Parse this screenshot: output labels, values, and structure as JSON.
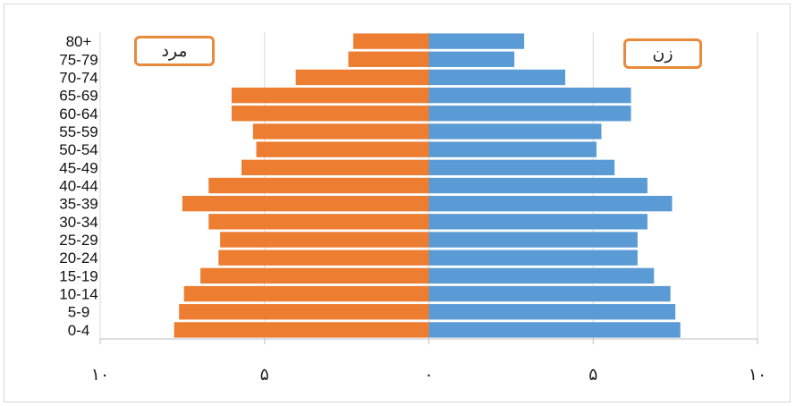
{
  "chart_data": {
    "type": "bar",
    "orientation": "horizontal",
    "layout": "population-pyramid",
    "categories": [
      "0-4",
      "5-9",
      "10-14",
      "15-19",
      "20-24",
      "25-29",
      "30-34",
      "35-39",
      "40-44",
      "45-49",
      "50-54",
      "55-59",
      "60-64",
      "65-69",
      "70-74",
      "75-79",
      "80+"
    ],
    "series": [
      {
        "name": "مرد",
        "side": "left",
        "color": "#ed7d31",
        "values": [
          7.75,
          7.6,
          7.45,
          6.95,
          6.4,
          6.35,
          6.7,
          7.5,
          6.7,
          5.7,
          5.25,
          5.35,
          6.0,
          6.0,
          4.05,
          2.45,
          2.3
        ]
      },
      {
        "name": "زن",
        "side": "right",
        "color": "#5b9bd5",
        "values": [
          7.65,
          7.5,
          7.35,
          6.85,
          6.35,
          6.35,
          6.65,
          7.4,
          6.65,
          5.65,
          5.1,
          5.25,
          6.15,
          6.15,
          4.15,
          2.6,
          2.9
        ]
      }
    ],
    "xlim": [
      -10,
      10
    ],
    "xticks": [
      {
        "value": -10,
        "label": "۱۰"
      },
      {
        "value": -5,
        "label": "۵"
      },
      {
        "value": 0,
        "label": "۰"
      },
      {
        "value": 5,
        "label": "۵"
      },
      {
        "value": 10,
        "label": "۱۰"
      }
    ],
    "legend": [
      {
        "label": "مرد",
        "placement": "top-left",
        "color": "#e98a3a"
      },
      {
        "label": "زن",
        "placement": "top-right",
        "color": "#e98a3a"
      }
    ],
    "grid": "vertical",
    "title": "",
    "xlabel": "",
    "ylabel": ""
  }
}
